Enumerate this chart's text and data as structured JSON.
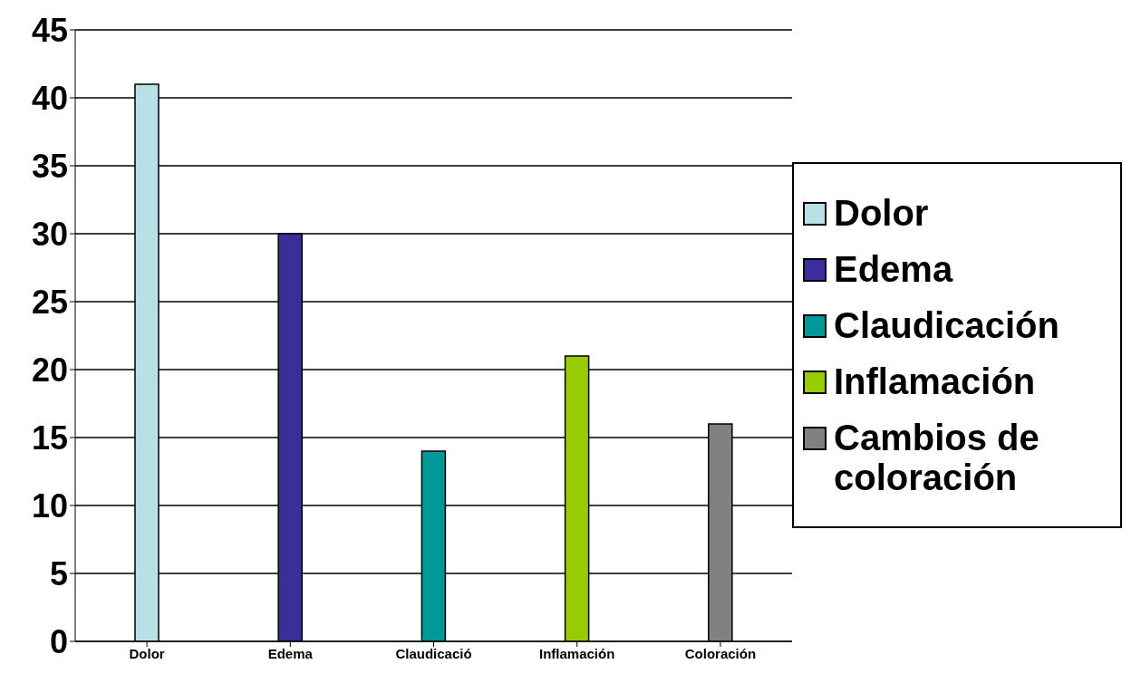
{
  "chart_data": {
    "type": "bar",
    "stacked": true,
    "categories": [
      "Dolor",
      "Edema",
      "Claudicació",
      "Inflamación",
      "Coloración"
    ],
    "series": [
      {
        "name": "Dolor",
        "color": "#b8e0e6",
        "values": [
          41,
          null,
          null,
          null,
          null
        ]
      },
      {
        "name": "Edema",
        "color": "#3a2f9a",
        "values": [
          null,
          30,
          null,
          null,
          null
        ]
      },
      {
        "name": "Claudicación",
        "color": "#009999",
        "values": [
          null,
          null,
          14,
          null,
          null
        ]
      },
      {
        "name": "Inflamación",
        "color": "#99cc00",
        "values": [
          null,
          null,
          null,
          21,
          null
        ]
      },
      {
        "name": "Cambios de coloración",
        "color": "#808080",
        "values": [
          null,
          null,
          null,
          null,
          16
        ]
      }
    ],
    "ylim": [
      0,
      45
    ],
    "yticks": [
      0,
      5,
      10,
      15,
      20,
      25,
      30,
      35,
      40,
      45
    ],
    "grid": "y",
    "legend": "right"
  }
}
